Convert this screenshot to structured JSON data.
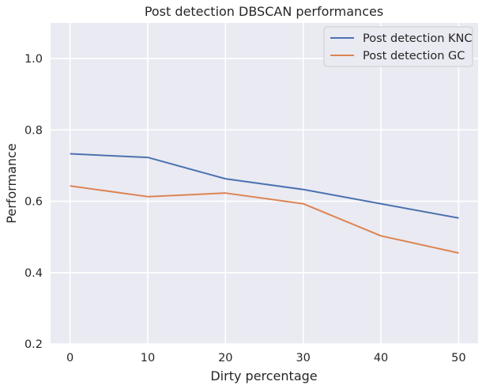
{
  "chart_data": {
    "type": "line",
    "title": "Post detection DBSCAN performances",
    "xlabel": "Dirty percentage",
    "ylabel": "Performance",
    "x": [
      0,
      10,
      20,
      30,
      40,
      50
    ],
    "xticks": [
      "0",
      "10",
      "20",
      "30",
      "40",
      "50"
    ],
    "yticks": [
      "0.2",
      "0.4",
      "0.6",
      "0.8",
      "1.0"
    ],
    "xlim": [
      -2.5,
      52.5
    ],
    "ylim": [
      0.2,
      1.1
    ],
    "grid": true,
    "legend_position": "top-right",
    "series": [
      {
        "name": "Post detection KNC",
        "color": "#4c72b0",
        "values": [
          0.733,
          0.723,
          0.663,
          0.633,
          0.593,
          0.553
        ]
      },
      {
        "name": "Post detection GC",
        "color": "#dd8452",
        "values": [
          0.643,
          0.613,
          0.623,
          0.593,
          0.503,
          0.455
        ]
      }
    ]
  }
}
